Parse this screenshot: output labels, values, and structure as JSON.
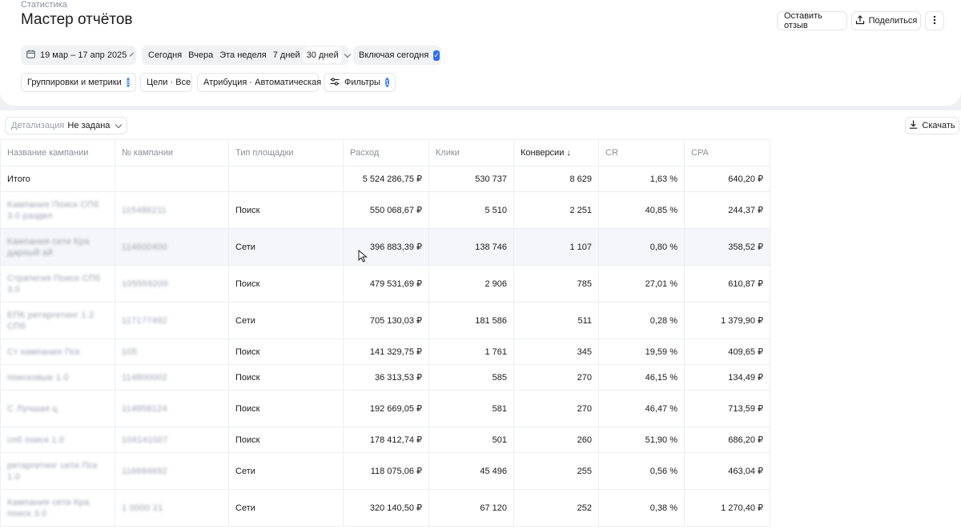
{
  "header": {
    "breadcrumb": "Статистика",
    "title": "Мастер отчётов",
    "feedback_label": "Оставить отзыв",
    "share_label": "Поделиться"
  },
  "filters": {
    "date_range": "19 мар – 17 апр 2025",
    "periods": [
      "Сегодня",
      "Вчера",
      "Эта неделя",
      "7 дней",
      "30 дней"
    ],
    "active_period": "30 дней",
    "include_today": "Включая сегодня",
    "include_today_checked": true,
    "groupings_label": "Группировки и метрики",
    "groupings_count": "8",
    "goals_label": "Цели · Все",
    "attribution_label": "Атрибуция · Автоматическая",
    "filters_label": "Фильтры",
    "filters_count": "1"
  },
  "toolbar": {
    "detail_label": "Детализация",
    "detail_value": "Не задана",
    "download_label": "Скачать"
  },
  "table": {
    "columns": [
      "Название кампании",
      "№ кампании",
      "Тип площадки",
      "Расход",
      "Клики",
      "Конверсии ↓",
      "CR",
      "CPA"
    ],
    "total": {
      "name": "Итого",
      "id": "",
      "type": "",
      "cost": "5 524 286,75 ₽",
      "clicks": "530 737",
      "conv": "8 629",
      "cr": "1,63 %",
      "cpa": "640,20 ₽"
    },
    "rows": [
      {
        "name": "Кампания Поиск СПб 3.0 раздел",
        "id": "115486211",
        "type": "Поиск",
        "cost": "550 068,67 ₽",
        "clicks": "5 510",
        "conv": "2 251",
        "cr": "40,85 %",
        "cpa": "244,37 ₽"
      },
      {
        "name": "Кампания сети Кра дарный ай",
        "id": "114600400",
        "type": "Сети",
        "cost": "396 883,39 ₽",
        "clicks": "138 746",
        "conv": "1 107",
        "cr": "0,80 %",
        "cpa": "358,52 ₽"
      },
      {
        "name": "Стратегия Поиск СПб 3.0",
        "id": "105559209",
        "type": "Поиск",
        "cost": "479 531,69 ₽",
        "clicks": "2 906",
        "conv": "785",
        "cr": "27,01 %",
        "cpa": "610,87 ₽"
      },
      {
        "name": "ЕПК ретаргетинг 1.2 СПб",
        "id": "117177492",
        "type": "Сети",
        "cost": "705 130,03 ₽",
        "clicks": "181 586",
        "conv": "511",
        "cr": "0,28 %",
        "cpa": "1 379,90 ₽"
      },
      {
        "name": "Ст кампания Пск",
        "id": "105",
        "type": "Поиск",
        "cost": "141 329,75 ₽",
        "clicks": "1 761",
        "conv": "345",
        "cr": "19,59 %",
        "cpa": "409,65 ₽"
      },
      {
        "name": "поисковые 1.0",
        "id": "114800002",
        "type": "Поиск",
        "cost": "36 313,53 ₽",
        "clicks": "585",
        "conv": "270",
        "cr": "46,15 %",
        "cpa": "134,49 ₽"
      },
      {
        "name": "С Лучшая ц",
        "id": "114958124",
        "type": "Поиск",
        "cost": "192 669,05 ₽",
        "clicks": "581",
        "conv": "270",
        "cr": "46,47 %",
        "cpa": "713,59 ₽"
      },
      {
        "name": "спб поиск 1.0",
        "id": "104141007",
        "type": "Поиск",
        "cost": "178 412,74 ₽",
        "clicks": "501",
        "conv": "260",
        "cr": "51,90 %",
        "cpa": "686,20 ₽"
      },
      {
        "name": "ретаргетинг сети Пск 1.0",
        "id": "116684692",
        "type": "Сети",
        "cost": "118 075,06 ₽",
        "clicks": "45 496",
        "conv": "255",
        "cr": "0,56 %",
        "cpa": "463,04 ₽"
      },
      {
        "name": "Кампания сети Кра поиск 3.0",
        "id": "1 0000 21",
        "type": "Сети",
        "cost": "320 140,50 ₽",
        "clicks": "67 120",
        "conv": "252",
        "cr": "0,38 %",
        "cpa": "1 270,40 ₽"
      }
    ]
  }
}
